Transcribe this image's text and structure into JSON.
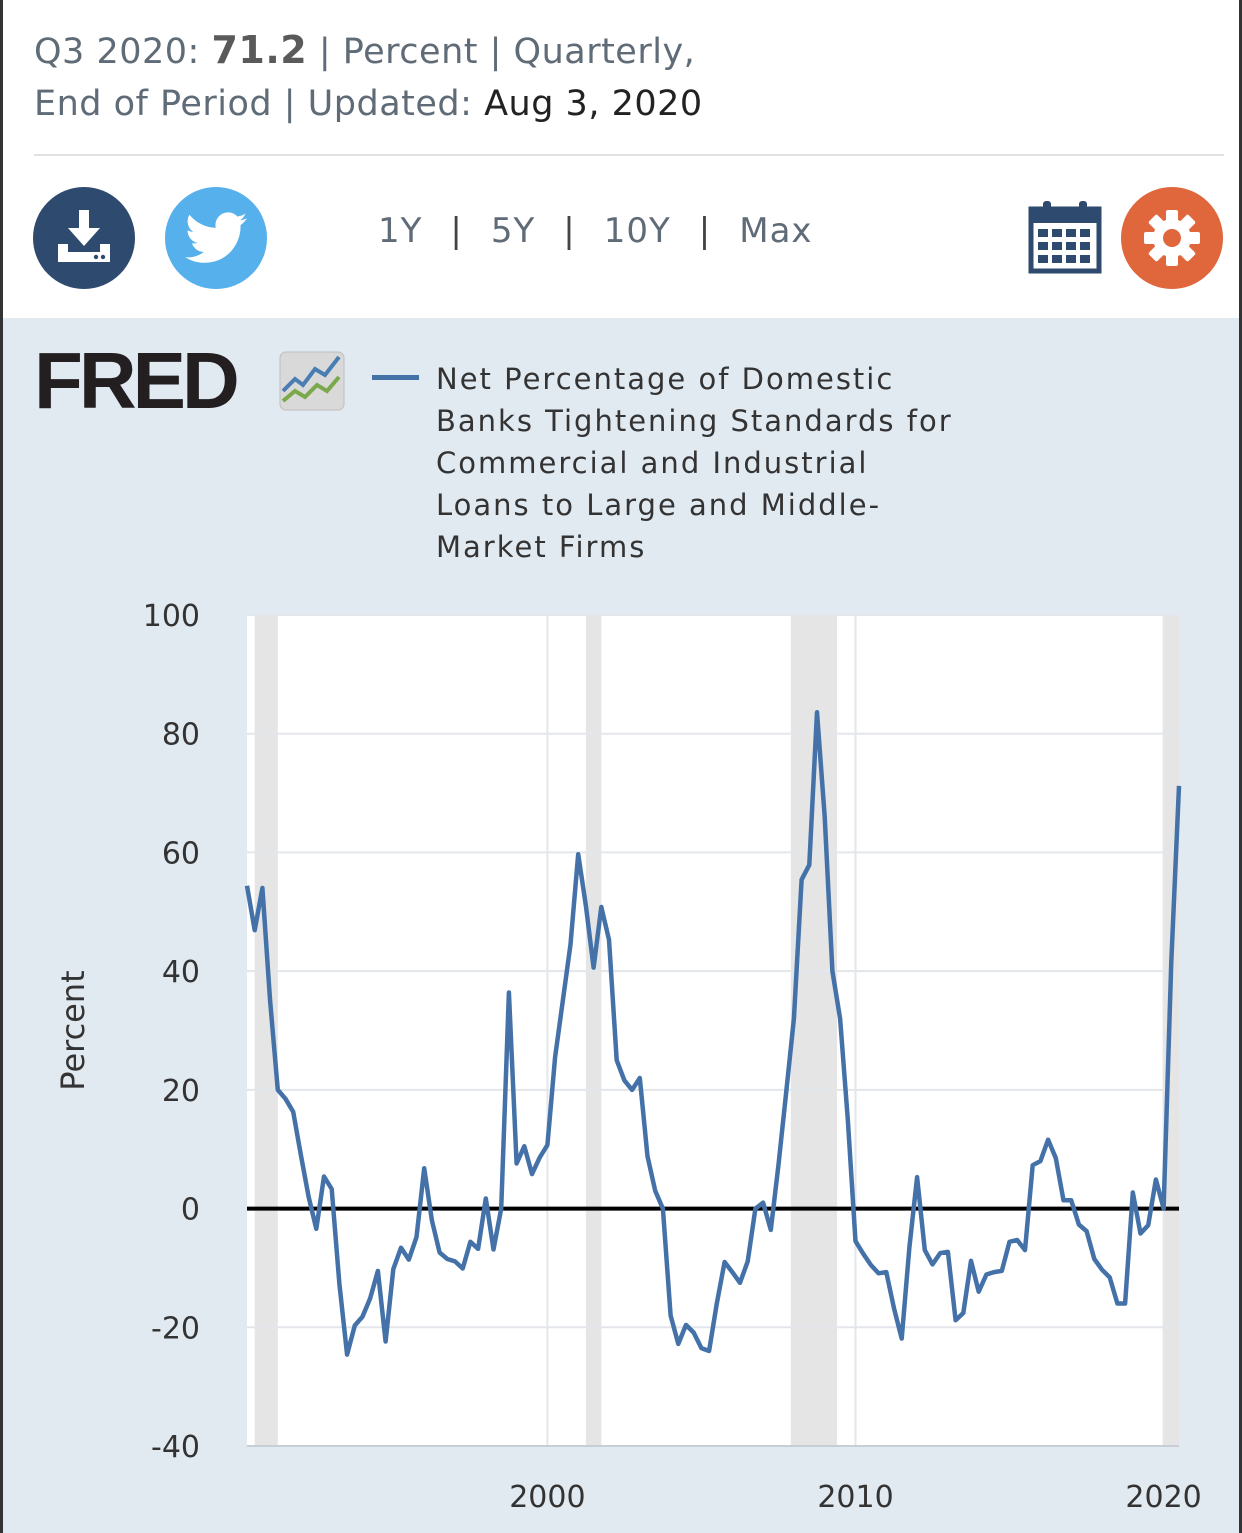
{
  "header": {
    "period": "Q3 2020:",
    "value": "71.2",
    "units_freq": "| Percent | Quarterly,",
    "line2_prefix": "End of Period | Updated:",
    "updated": "Aug 3, 2020"
  },
  "toolbar": {
    "download_icon": "download-icon",
    "twitter_icon": "twitter-icon",
    "calendar_icon": "calendar-icon",
    "settings_icon": "gear-icon",
    "ranges": [
      "1Y",
      "5Y",
      "10Y",
      "Max"
    ],
    "separator": "|"
  },
  "logo": {
    "text": "FRED"
  },
  "chart_data": {
    "type": "line",
    "legend": "Net Percentage of Domestic Banks Tightening Standards for Commercial and Industrial Loans to Large and Middle-Market Firms",
    "ylabel": "Percent",
    "xlim": [
      1990.25,
      2020.5
    ],
    "ylim": [
      -40,
      100
    ],
    "y_ticks": [
      -40,
      -20,
      0,
      20,
      40,
      60,
      80,
      100
    ],
    "x_ticks": [
      "2000",
      "2010",
      "2020"
    ],
    "grid": true,
    "line_color": "#4472a8",
    "zero_line": true,
    "recessions": [
      [
        1990.5,
        1991.25
      ],
      [
        2001.25,
        2001.75
      ],
      [
        2007.9,
        2009.4
      ],
      [
        2020.0,
        2020.5
      ]
    ],
    "series": [
      {
        "x": [
          1990.25,
          1990.5,
          1990.75,
          1991,
          1991.25,
          1991.5,
          1991.75,
          1992,
          1992.25,
          1992.5,
          1992.75,
          1993,
          1993.25,
          1993.5,
          1993.75,
          1994,
          1994.25,
          1994.5,
          1994.75,
          1995,
          1995.25,
          1995.5,
          1995.75,
          1996,
          1996.25,
          1996.5,
          1996.75,
          1997,
          1997.25,
          1997.5,
          1997.75,
          1998,
          1998.25,
          1998.5,
          1998.75,
          1999,
          1999.25,
          1999.5,
          1999.75,
          2000,
          2000.25,
          2000.5,
          2000.75,
          2001,
          2001.25,
          2001.5,
          2001.75,
          2002,
          2002.25,
          2002.5,
          2002.75,
          2003,
          2003.25,
          2003.5,
          2003.75,
          2004,
          2004.25,
          2004.5,
          2004.75,
          2005,
          2005.25,
          2005.5,
          2005.75,
          2006,
          2006.25,
          2006.5,
          2006.75,
          2007,
          2007.25,
          2007.5,
          2007.75,
          2008,
          2008.25,
          2008.5,
          2008.75,
          2009,
          2009.25,
          2009.5,
          2009.75,
          2010,
          2010.25,
          2010.5,
          2010.75,
          2011,
          2011.25,
          2011.5,
          2011.75,
          2012,
          2012.25,
          2012.5,
          2012.75,
          2013,
          2013.25,
          2013.5,
          2013.75,
          2014,
          2014.25,
          2014.5,
          2014.75,
          2015,
          2015.25,
          2015.5,
          2015.75,
          2016,
          2016.25,
          2016.5,
          2016.75,
          2017,
          2017.25,
          2017.5,
          2017.75,
          2018,
          2018.25,
          2018.5,
          2018.75,
          2019,
          2019.25,
          2019.5,
          2019.75,
          2020,
          2020.25,
          2020.5
        ],
        "values": [
          54.4,
          46.9,
          54.0,
          35.0,
          20.0,
          18.5,
          16.3,
          9.0,
          2.0,
          -3.4,
          5.4,
          3.3,
          -12.7,
          -24.6,
          -19.7,
          -18.2,
          -15.1,
          -10.5,
          -22.4,
          -10.2,
          -6.6,
          -8.6,
          -4.8,
          6.8,
          -2.0,
          -7.4,
          -8.5,
          -8.9,
          -10.1,
          -5.6,
          -6.8,
          1.7,
          -6.9,
          0.0,
          36.4,
          7.6,
          10.5,
          5.8,
          8.6,
          10.7,
          25.5,
          35.0,
          44.5,
          59.7,
          51.0,
          40.6,
          50.8,
          45.3,
          25.0,
          21.6,
          20.0,
          22.0,
          8.8,
          3.0,
          0.0,
          -18.0,
          -22.8,
          -19.6,
          -20.9,
          -23.5,
          -24.0,
          -15.9,
          -9.0,
          -10.7,
          -12.5,
          -8.9,
          0.0,
          1.0,
          -3.6,
          7.4,
          19.6,
          32.0,
          55.4,
          57.9,
          83.6,
          66.0,
          40.0,
          32.0,
          15.0,
          -5.5,
          -7.6,
          -9.5,
          -10.9,
          -10.7,
          -16.8,
          -21.9,
          -6.5,
          5.3,
          -7.0,
          -9.4,
          -7.5,
          -7.3,
          -18.8,
          -17.6,
          -8.8,
          -14.0,
          -11.1,
          -10.7,
          -10.5,
          -5.6,
          -5.3,
          -7.0,
          7.3,
          8.0,
          11.6,
          8.5,
          1.4,
          1.4,
          -2.7,
          -3.8,
          -8.5,
          -10.3,
          -11.6,
          -16.0,
          -16.0,
          2.7,
          -4.2,
          -2.8,
          4.9,
          0.0,
          41.6,
          71.2
        ]
      }
    ]
  }
}
